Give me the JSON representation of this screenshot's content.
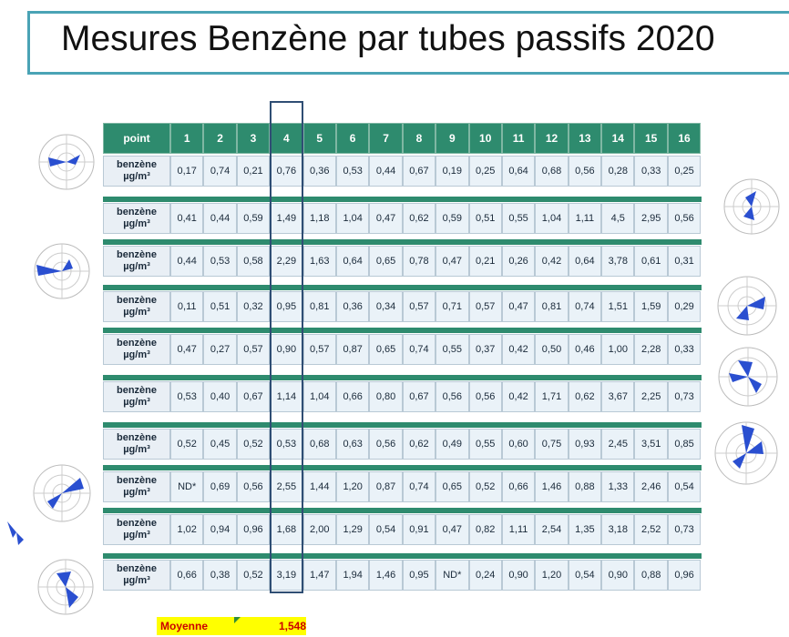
{
  "title": "Mesures Benzène par tubes passifs 2020",
  "table": {
    "header_label": "point",
    "points": [
      "1",
      "2",
      "3",
      "4",
      "5",
      "6",
      "7",
      "8",
      "9",
      "10",
      "11",
      "12",
      "13",
      "14",
      "15",
      "16"
    ],
    "row_label_line1": "benzène",
    "row_label_line2": "µg/m³",
    "rows": [
      [
        "0,17",
        "0,74",
        "0,21",
        "0,76",
        "0,36",
        "0,53",
        "0,44",
        "0,67",
        "0,19",
        "0,25",
        "0,64",
        "0,68",
        "0,56",
        "0,28",
        "0,33",
        "0,25"
      ],
      [
        "0,41",
        "0,44",
        "0,59",
        "1,49",
        "1,18",
        "1,04",
        "0,47",
        "0,62",
        "0,59",
        "0,51",
        "0,55",
        "1,04",
        "1,11",
        "4,5",
        "2,95",
        "0,56"
      ],
      [
        "0,44",
        "0,53",
        "0,58",
        "2,29",
        "1,63",
        "0,64",
        "0,65",
        "0,78",
        "0,47",
        "0,21",
        "0,26",
        "0,42",
        "0,64",
        "3,78",
        "0,61",
        "0,31"
      ],
      [
        "0,11",
        "0,51",
        "0,32",
        "0,95",
        "0,81",
        "0,36",
        "0,34",
        "0,57",
        "0,71",
        "0,57",
        "0,47",
        "0,81",
        "0,74",
        "1,51",
        "1,59",
        "0,29"
      ],
      [
        "0,47",
        "0,27",
        "0,57",
        "0,90",
        "0,57",
        "0,87",
        "0,65",
        "0,74",
        "0,55",
        "0,37",
        "0,42",
        "0,50",
        "0,46",
        "1,00",
        "2,28",
        "0,33"
      ],
      [
        "0,53",
        "0,40",
        "0,67",
        "1,14",
        "1,04",
        "0,66",
        "0,80",
        "0,67",
        "0,56",
        "0,56",
        "0,42",
        "1,71",
        "0,62",
        "3,67",
        "2,25",
        "0,73"
      ],
      [
        "0,52",
        "0,45",
        "0,52",
        "0,53",
        "0,68",
        "0,63",
        "0,56",
        "0,62",
        "0,49",
        "0,55",
        "0,60",
        "0,75",
        "0,93",
        "2,45",
        "3,51",
        "0,85"
      ],
      [
        "ND*",
        "0,69",
        "0,56",
        "2,55",
        "1,44",
        "1,20",
        "0,87",
        "0,74",
        "0,65",
        "0,52",
        "0,66",
        "1,46",
        "0,88",
        "1,33",
        "2,46",
        "0,54"
      ],
      [
        "1,02",
        "0,94",
        "0,96",
        "1,68",
        "2,00",
        "1,29",
        "0,54",
        "0,91",
        "0,47",
        "0,82",
        "1,11",
        "2,54",
        "1,35",
        "3,18",
        "2,52",
        "0,73"
      ],
      [
        "0,66",
        "0,38",
        "0,52",
        "3,19",
        "1,47",
        "1,94",
        "1,46",
        "0,95",
        "ND*",
        "0,24",
        "0,90",
        "1,20",
        "0,54",
        "0,90",
        "0,88",
        "0,96"
      ]
    ]
  },
  "highlighted_point": "4",
  "summary": {
    "label": "Moyenne",
    "value": "1,548"
  },
  "colors": {
    "header_green": "#2e8b6e",
    "title_border": "#4aa3b5",
    "highlight_border": "#2f4e74",
    "summary_bg": "#ffff00",
    "summary_text": "#cc0000"
  }
}
